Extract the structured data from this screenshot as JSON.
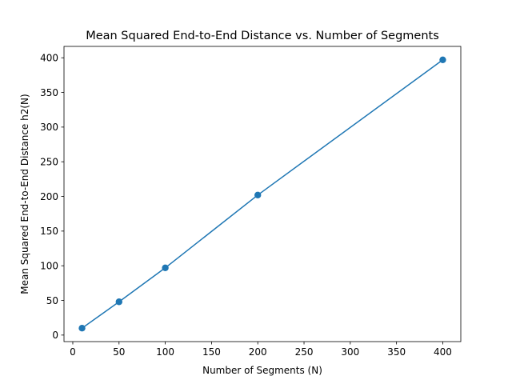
{
  "chart_data": {
    "type": "line",
    "title": "Mean Squared End-to-End Distance vs. Number of Segments",
    "xlabel": "Number of Segments (N)",
    "ylabel": "Mean Squared End-to-End Distance h2(N)",
    "x": [
      10,
      50,
      100,
      200,
      400
    ],
    "series": [
      {
        "values": [
          10,
          48,
          97,
          202,
          397
        ],
        "color": "#1f77b4",
        "marker": "circle"
      }
    ],
    "xlim": [
      -9.5,
      419.5
    ],
    "ylim": [
      -9.4,
      416.4
    ],
    "xticks": [
      0,
      50,
      100,
      150,
      200,
      250,
      300,
      350,
      400
    ],
    "yticks": [
      0,
      50,
      100,
      150,
      200,
      250,
      300,
      350,
      400
    ],
    "grid": false,
    "legend": "none"
  }
}
